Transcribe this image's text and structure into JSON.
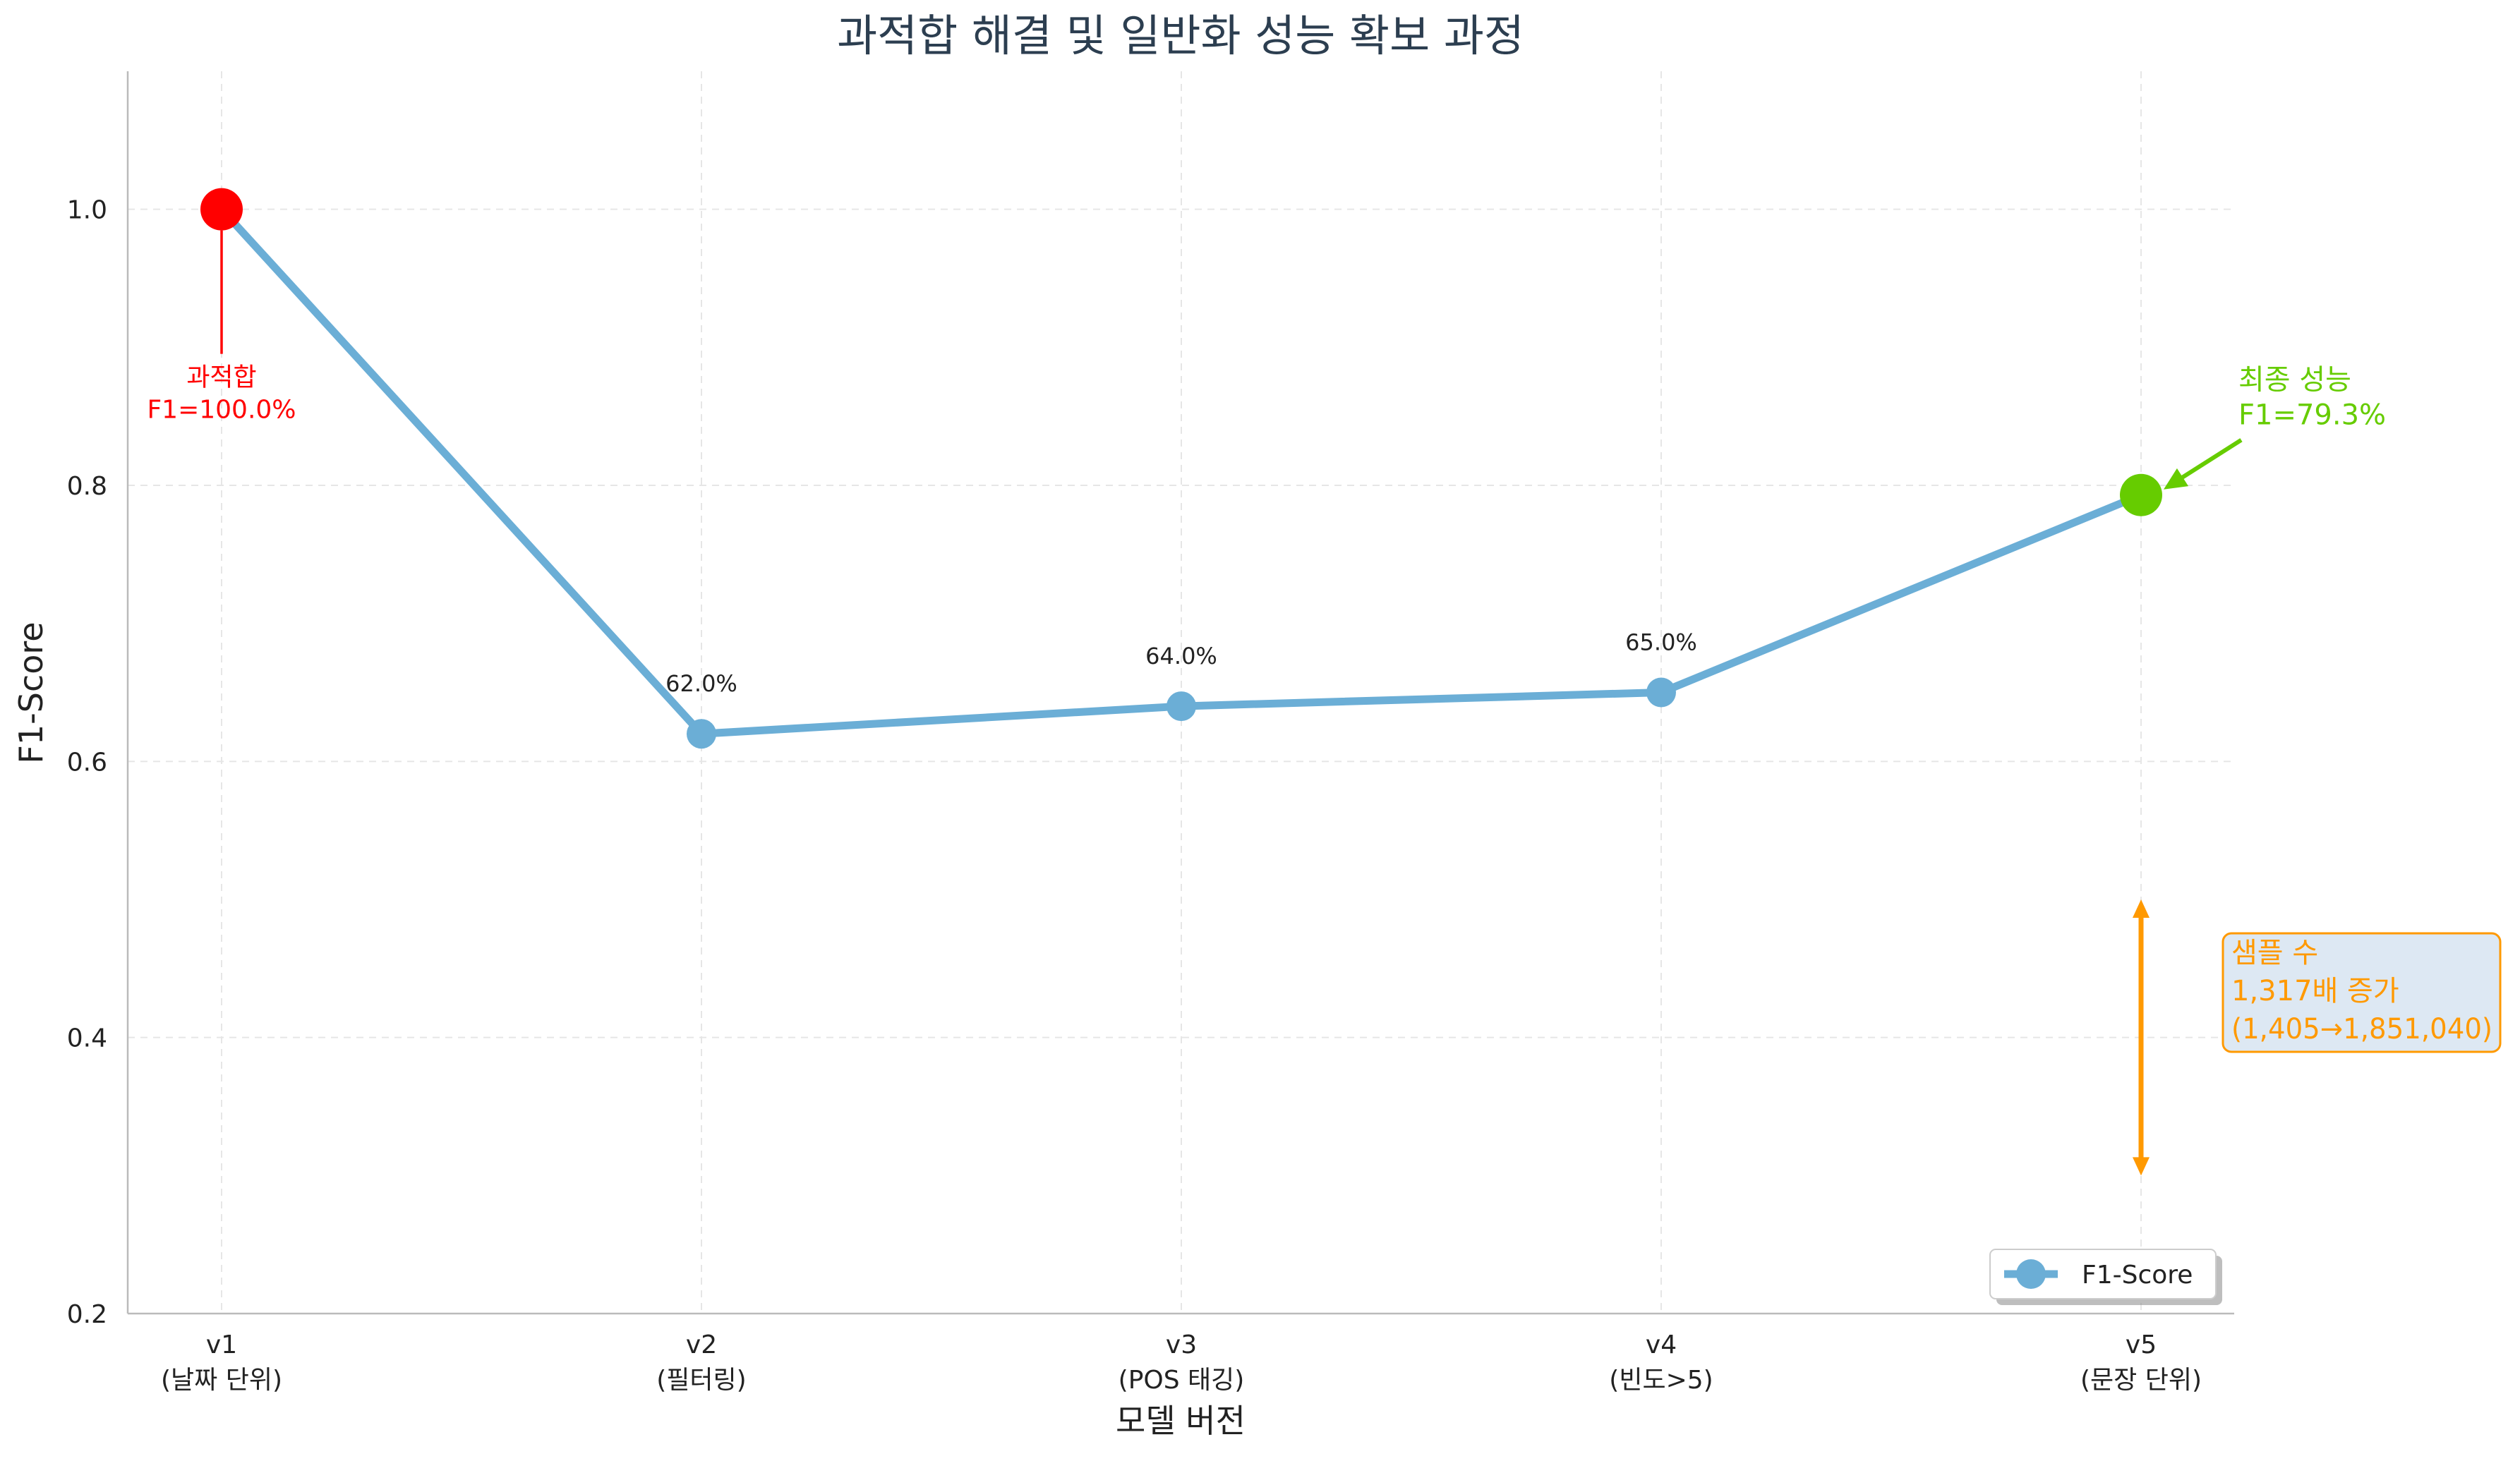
{
  "colors": {
    "line": "#6baed6",
    "overfit": "#ff0000",
    "final": "#66cc00",
    "sample": "#ff9900",
    "sample_box_bg": "#dde8f3",
    "title": "#2c3e50",
    "text": "#222222",
    "grid": "#e6e6e6",
    "axis": "#bbbbbb"
  },
  "chart_data": {
    "type": "line",
    "title": "과적합 해결 및 일반화 성능 확보 과정",
    "xlabel": "모델 버전",
    "ylabel": "F1-Score",
    "ylim": [
      0.2,
      1.1
    ],
    "yticks": [
      "0.2",
      "0.4",
      "0.6",
      "0.8",
      "1.0"
    ],
    "grid": true,
    "legend_position": "bottom-right",
    "categories": [
      {
        "version": "v1",
        "desc": "(날짜 단위)"
      },
      {
        "version": "v2",
        "desc": "(필터링)"
      },
      {
        "version": "v3",
        "desc": "(POS 태깅)"
      },
      {
        "version": "v4",
        "desc": "(빈도>5)"
      },
      {
        "version": "v5",
        "desc": "(문장 단위)"
      }
    ],
    "series": [
      {
        "name": "F1-Score",
        "values": [
          1.0,
          0.62,
          0.64,
          0.65,
          0.793
        ]
      }
    ],
    "point_labels": [
      "",
      "62.0%",
      "64.0%",
      "65.0%",
      ""
    ],
    "annotations": {
      "overfit": {
        "line1": "과적합",
        "line2": "F1=100.0%"
      },
      "final": {
        "line1": "최종 성능",
        "line2": "F1=79.3%"
      },
      "sample": {
        "line1": "샘플 수",
        "line2": "1,317배 증가",
        "line3": "(1,405→1,851,040)",
        "arrow_range": [
          0.3,
          0.5
        ]
      }
    }
  }
}
